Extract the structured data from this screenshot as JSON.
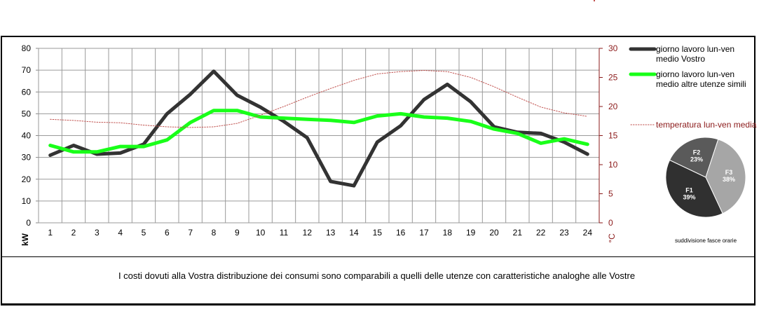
{
  "chart_data": [
    {
      "type": "line",
      "x": [
        1,
        2,
        3,
        4,
        5,
        6,
        7,
        8,
        9,
        10,
        11,
        12,
        13,
        14,
        15,
        16,
        17,
        18,
        19,
        20,
        21,
        22,
        23,
        24
      ],
      "xlabel": "",
      "ylabel": "kW",
      "ylim": [
        0,
        80
      ],
      "yticks": [
        0,
        10,
        20,
        30,
        40,
        50,
        60,
        70,
        80
      ],
      "y2label": "°C",
      "y2lim": [
        0,
        30
      ],
      "y2ticks": [
        0,
        5,
        10,
        15,
        20,
        25,
        30
      ],
      "grid": true,
      "legend_position": "right",
      "series": [
        {
          "name": "giorno lavoro lun-ven medio Vostro",
          "axis": "left",
          "color": "#333333",
          "values": [
            31,
            35.5,
            31.5,
            32,
            36,
            50,
            59,
            69.5,
            58.5,
            53,
            46.5,
            39,
            19,
            17,
            37,
            44.5,
            56.5,
            63.5,
            55.5,
            44,
            41.5,
            41,
            37,
            31.5
          ]
        },
        {
          "name": "giorno lavoro lun-ven medio altre utenze simili",
          "axis": "left",
          "color": "#19ff19",
          "values": [
            35.5,
            32.5,
            32.5,
            35,
            35,
            38,
            46,
            51.5,
            51.5,
            48.5,
            48,
            47.5,
            47,
            46,
            49,
            50,
            48.5,
            48,
            46.5,
            43,
            41,
            36.5,
            38.5,
            36
          ]
        },
        {
          "name": "temperatura lun-ven media",
          "axis": "right",
          "color": "#c0504d",
          "style": "dotted",
          "values": [
            17.8,
            17.6,
            17.3,
            17.2,
            16.8,
            16.5,
            16.4,
            16.5,
            17.1,
            18.5,
            20.0,
            21.6,
            23.1,
            24.5,
            25.6,
            26.0,
            26.2,
            26.0,
            25.0,
            23.4,
            21.6,
            19.9,
            18.9,
            18.3
          ]
        }
      ]
    },
    {
      "type": "pie",
      "xlabel": "suddivisione fasce orarie",
      "labels": [
        "F1",
        "F2",
        "F3"
      ],
      "values": [
        39,
        23,
        38
      ],
      "display": [
        "39%",
        "23%",
        "38%"
      ],
      "colors": [
        "#303030",
        "#5a5a5a",
        "#a6a6a6"
      ]
    }
  ],
  "caption": "I costi dovuti alla Vostra distribuzione dei consumi sono comparabili a quelli delle utenze con caratteristiche analoghe alle Vostre"
}
